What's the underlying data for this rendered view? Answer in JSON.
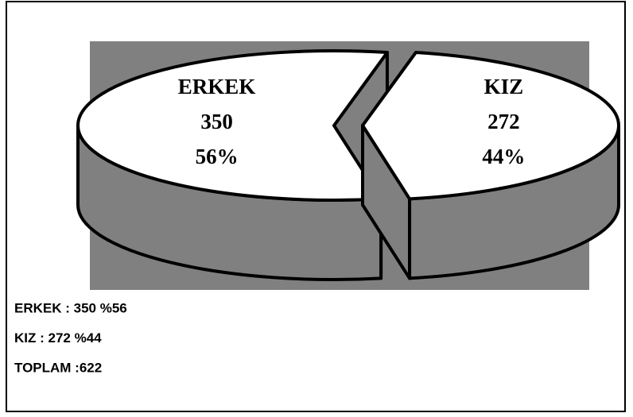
{
  "chart_data": {
    "type": "pie",
    "categories": [
      "ERKEK",
      "KIZ"
    ],
    "values": [
      350,
      272
    ],
    "percent_labels": [
      "56%",
      "44%"
    ],
    "colors": {
      "top": "#ffffff",
      "side": "#808080",
      "background": "#808080"
    },
    "notes": [
      "ERKEK : 350 %56",
      "KIZ : 272 %44",
      "TOPLAM :622"
    ]
  }
}
